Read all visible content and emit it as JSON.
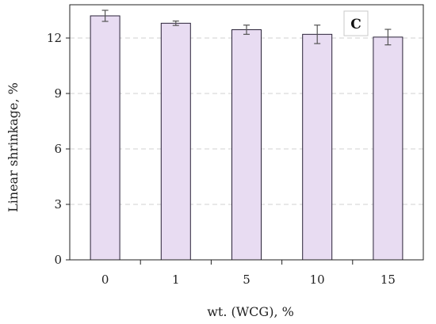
{
  "chart_data": {
    "type": "bar",
    "categories": [
      "0",
      "1",
      "5",
      "10",
      "15"
    ],
    "values": [
      13.2,
      12.8,
      12.45,
      12.2,
      12.05
    ],
    "errors": [
      0.3,
      0.12,
      0.25,
      0.5,
      0.42
    ],
    "xlabel": "wt. (WCG), %",
    "ylabel": "Linear shrinkage, %",
    "ylim": [
      0,
      13.8
    ],
    "yticks": [
      0,
      3,
      6,
      9,
      12
    ],
    "grid": "horizontal-dashed",
    "panel_label": "C",
    "colors": {
      "bar_fill": "#e8dcf2",
      "bar_stroke": "#2a2238",
      "grid": "#d0d0d0",
      "axis": "#222222",
      "error_bar": "#555555"
    }
  }
}
